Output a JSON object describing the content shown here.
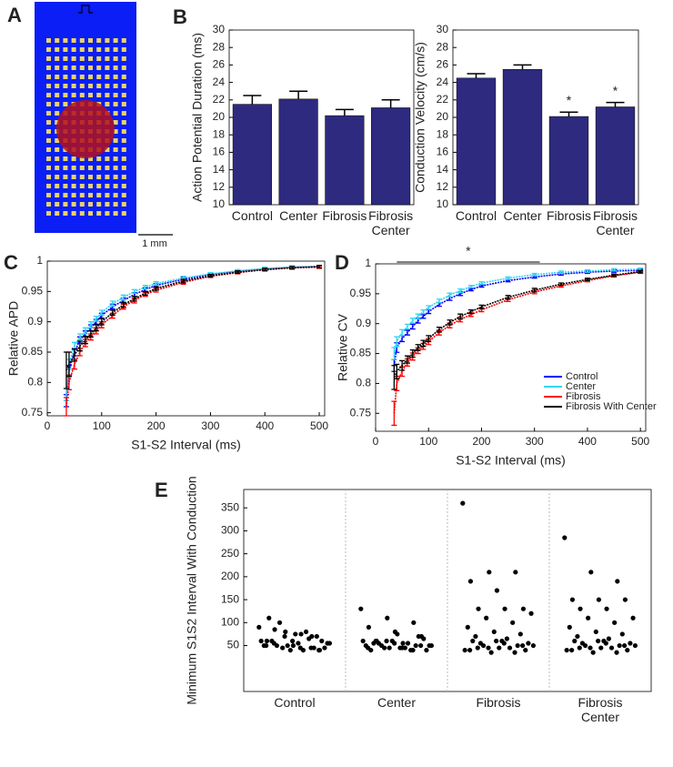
{
  "panel_a": {
    "label": "A",
    "scale_bar": "1 mm"
  },
  "chart_data": [
    {
      "type": "bar",
      "panel": "B",
      "ylabel": "Action Potential Duration (ms)",
      "categories": [
        "Control",
        "Center",
        "Fibrosis",
        "Fibrosis Center"
      ],
      "values": [
        21.5,
        22.1,
        20.2,
        21.1
      ],
      "errors": [
        1.0,
        0.9,
        0.7,
        0.9
      ],
      "color": "#2e2a7f",
      "ylim": [
        10,
        30
      ],
      "yticks": [
        10,
        12,
        14,
        16,
        18,
        20,
        22,
        24,
        26,
        28,
        30
      ]
    },
    {
      "type": "bar",
      "ylabel": "Conduction Velocity (cm/s)",
      "categories": [
        "Control",
        "Center",
        "Fibrosis",
        "Fibrosis Center"
      ],
      "values": [
        24.5,
        25.5,
        20.1,
        21.2
      ],
      "errors": [
        0.5,
        0.5,
        0.5,
        0.5
      ],
      "markers": [
        null,
        null,
        "*",
        "*"
      ],
      "color": "#2e2a7f",
      "ylim": [
        10,
        30
      ],
      "yticks": [
        10,
        12,
        14,
        16,
        18,
        20,
        22,
        24,
        26,
        28,
        30
      ]
    },
    {
      "type": "line",
      "panel": "C",
      "xlabel": "S1-S2 Interval (ms)",
      "ylabel": "Relative APD",
      "x": [
        35,
        40,
        50,
        60,
        70,
        80,
        90,
        100,
        120,
        140,
        160,
        180,
        200,
        250,
        300,
        350,
        400,
        450,
        500
      ],
      "series": [
        {
          "name": "Control",
          "color": "#0000ff",
          "values": [
            0.77,
            0.82,
            0.85,
            0.87,
            0.88,
            0.89,
            0.9,
            0.91,
            0.925,
            0.935,
            0.945,
            0.953,
            0.96,
            0.97,
            0.978,
            0.983,
            0.987,
            0.99,
            0.991
          ],
          "errors": [
            0.01,
            0.008,
            0.006,
            0.005,
            0.005,
            0.005,
            0.004,
            0.004,
            0.004,
            0.004,
            0.003,
            0.003,
            0.003,
            0.003,
            0.002,
            0.002,
            0.002,
            0.002,
            0.002
          ]
        },
        {
          "name": "Center",
          "color": "#33d6ef",
          "values": [
            0.78,
            0.83,
            0.86,
            0.875,
            0.885,
            0.895,
            0.905,
            0.915,
            0.93,
            0.94,
            0.95,
            0.957,
            0.963,
            0.972,
            0.979,
            0.984,
            0.988,
            0.99,
            0.991
          ],
          "errors": [
            0.01,
            0.008,
            0.006,
            0.005,
            0.005,
            0.005,
            0.004,
            0.004,
            0.004,
            0.004,
            0.003,
            0.003,
            0.003,
            0.003,
            0.002,
            0.002,
            0.002,
            0.002,
            0.002
          ]
        },
        {
          "name": "Fibrosis",
          "color": "#ff0000",
          "values": [
            0.76,
            0.8,
            0.83,
            0.85,
            0.865,
            0.875,
            0.885,
            0.895,
            0.91,
            0.925,
            0.935,
            0.945,
            0.952,
            0.965,
            0.975,
            0.981,
            0.986,
            0.989,
            0.99
          ],
          "errors": [
            0.015,
            0.012,
            0.008,
            0.006,
            0.006,
            0.005,
            0.005,
            0.005,
            0.004,
            0.004,
            0.004,
            0.003,
            0.003,
            0.003,
            0.002,
            0.002,
            0.002,
            0.002,
            0.002
          ]
        },
        {
          "name": "Fibrosis With Center",
          "color": "#000000",
          "values": [
            0.82,
            0.83,
            0.845,
            0.86,
            0.87,
            0.88,
            0.89,
            0.9,
            0.915,
            0.928,
            0.938,
            0.947,
            0.955,
            0.967,
            0.976,
            0.982,
            0.986,
            0.989,
            0.991
          ],
          "errors": [
            0.03,
            0.02,
            0.01,
            0.008,
            0.006,
            0.005,
            0.005,
            0.005,
            0.004,
            0.004,
            0.004,
            0.003,
            0.003,
            0.003,
            0.002,
            0.002,
            0.002,
            0.002,
            0.002
          ]
        }
      ],
      "xlim": [
        0,
        510
      ],
      "ylim": [
        0.745,
        1
      ],
      "xticks": [
        0,
        100,
        200,
        300,
        400,
        500
      ],
      "yticks": [
        0.75,
        0.8,
        0.85,
        0.9,
        0.95,
        1
      ]
    },
    {
      "type": "line",
      "panel": "D",
      "xlabel": "S1-S2 Interval (ms)",
      "ylabel": "Relative CV",
      "legend": "lower right",
      "significance": {
        "x": [
          40,
          310
        ],
        "label": "*"
      },
      "x": [
        35,
        40,
        50,
        60,
        70,
        80,
        90,
        100,
        120,
        140,
        160,
        180,
        200,
        250,
        300,
        350,
        400,
        450,
        500
      ],
      "series": [
        {
          "name": "Control",
          "color": "#0000ff",
          "values": [
            0.83,
            0.86,
            0.875,
            0.885,
            0.895,
            0.905,
            0.912,
            0.92,
            0.932,
            0.942,
            0.95,
            0.957,
            0.963,
            0.972,
            0.978,
            0.983,
            0.986,
            0.988,
            0.989
          ],
          "errors": [
            0.01,
            0.008,
            0.005,
            0.004,
            0.004,
            0.004,
            0.003,
            0.003,
            0.003,
            0.003,
            0.003,
            0.002,
            0.002,
            0.002,
            0.002,
            0.002,
            0.002,
            0.002,
            0.002
          ]
        },
        {
          "name": "Center",
          "color": "#33d6ef",
          "values": [
            0.85,
            0.87,
            0.885,
            0.895,
            0.905,
            0.912,
            0.92,
            0.927,
            0.938,
            0.948,
            0.955,
            0.962,
            0.968,
            0.976,
            0.982,
            0.986,
            0.988,
            0.99,
            0.991
          ],
          "errors": [
            0.01,
            0.008,
            0.005,
            0.004,
            0.004,
            0.004,
            0.003,
            0.003,
            0.003,
            0.003,
            0.003,
            0.002,
            0.002,
            0.002,
            0.002,
            0.002,
            0.002,
            0.002,
            0.002
          ]
        },
        {
          "name": "Fibrosis",
          "color": "#ff0000",
          "values": [
            0.75,
            0.8,
            0.82,
            0.835,
            0.845,
            0.855,
            0.862,
            0.87,
            0.885,
            0.897,
            0.907,
            0.915,
            0.923,
            0.94,
            0.953,
            0.963,
            0.972,
            0.98,
            0.986
          ],
          "errors": [
            0.02,
            0.012,
            0.008,
            0.006,
            0.006,
            0.005,
            0.005,
            0.005,
            0.004,
            0.004,
            0.004,
            0.003,
            0.003,
            0.003,
            0.003,
            0.002,
            0.002,
            0.002,
            0.002
          ]
        },
        {
          "name": "Fibrosis With Center",
          "color": "#000000",
          "values": [
            0.81,
            0.82,
            0.83,
            0.84,
            0.85,
            0.86,
            0.867,
            0.875,
            0.89,
            0.902,
            0.912,
            0.92,
            0.928,
            0.944,
            0.956,
            0.966,
            0.974,
            0.981,
            0.987
          ],
          "errors": [
            0.02,
            0.012,
            0.008,
            0.006,
            0.006,
            0.005,
            0.005,
            0.005,
            0.004,
            0.004,
            0.004,
            0.003,
            0.003,
            0.003,
            0.003,
            0.002,
            0.002,
            0.002,
            0.002
          ]
        }
      ],
      "xlim": [
        0,
        510
      ],
      "ylim": [
        0.72,
        1
      ],
      "xticks": [
        0,
        100,
        200,
        300,
        400,
        500
      ],
      "yticks": [
        0.75,
        0.8,
        0.85,
        0.9,
        0.95,
        1
      ]
    },
    {
      "type": "strip",
      "panel": "E",
      "ylabel": "Minimum S1S2 Interval With Conduction",
      "categories": [
        "Control",
        "Center",
        "Fibrosis",
        "Fibrosis Center"
      ],
      "values": [
        [
          90,
          80,
          70,
          60,
          50,
          40,
          85,
          75,
          55,
          45,
          65,
          50,
          40,
          70,
          60,
          55,
          45,
          100,
          80,
          60,
          50,
          45,
          110,
          75,
          60,
          50,
          40,
          55,
          70,
          45,
          50,
          60,
          40,
          55,
          45
        ],
        [
          130,
          110,
          100,
          90,
          80,
          70,
          60,
          55,
          50,
          45,
          40,
          50,
          60,
          70,
          55,
          45,
          40,
          50,
          55,
          60,
          45,
          50,
          40,
          75,
          65,
          55,
          45,
          50,
          60,
          40,
          45,
          55,
          50,
          60,
          45
        ],
        [
          360,
          210,
          210,
          190,
          170,
          130,
          130,
          130,
          120,
          110,
          100,
          90,
          80,
          75,
          70,
          60,
          55,
          50,
          45,
          40,
          35,
          50,
          60,
          45,
          40,
          55,
          65,
          50,
          45,
          35,
          40,
          60,
          50,
          45,
          55
        ],
        [
          285,
          210,
          190,
          150,
          150,
          150,
          130,
          130,
          110,
          110,
          100,
          90,
          80,
          75,
          70,
          60,
          55,
          50,
          45,
          40,
          35,
          50,
          60,
          45,
          40,
          55,
          65,
          50,
          45,
          35,
          40,
          60,
          50,
          45,
          55
        ]
      ],
      "color": "#000000",
      "ylim": [
        -50,
        390
      ],
      "yticks": [
        50,
        100,
        150,
        200,
        250,
        300,
        350
      ]
    }
  ]
}
